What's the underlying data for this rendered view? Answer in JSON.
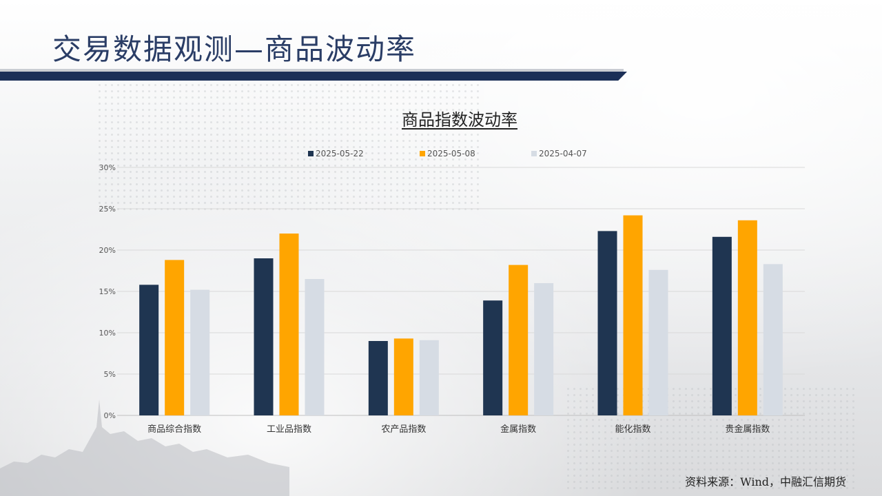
{
  "page": {
    "title": "交易数据观测—商品波动率",
    "source": "资料来源：Wind，中融汇信期货"
  },
  "colors": {
    "title": "#2a3d66",
    "title_bar": "#1b2f57",
    "series": [
      "#1f3551",
      "#ffa500",
      "#d6dce4"
    ]
  },
  "chart_data": {
    "type": "bar",
    "title": "商品指数波动率",
    "categories": [
      "商品综合指数",
      "工业品指数",
      "农产品指数",
      "金属指数",
      "能化指数",
      "贵金属指数"
    ],
    "series": [
      {
        "name": "2025-05-22",
        "values": [
          15.8,
          19.0,
          9.0,
          13.9,
          22.3,
          21.6
        ]
      },
      {
        "name": "2025-05-08",
        "values": [
          18.8,
          22.0,
          9.3,
          18.2,
          24.2,
          23.6
        ]
      },
      {
        "name": "2025-04-07",
        "values": [
          15.2,
          16.5,
          9.1,
          16.0,
          17.6,
          18.3
        ]
      }
    ],
    "ylim": [
      0,
      30
    ],
    "yticks": [
      "0%",
      "5%",
      "10%",
      "15%",
      "20%",
      "25%",
      "30%"
    ],
    "grid": true,
    "legend": "top-center"
  }
}
